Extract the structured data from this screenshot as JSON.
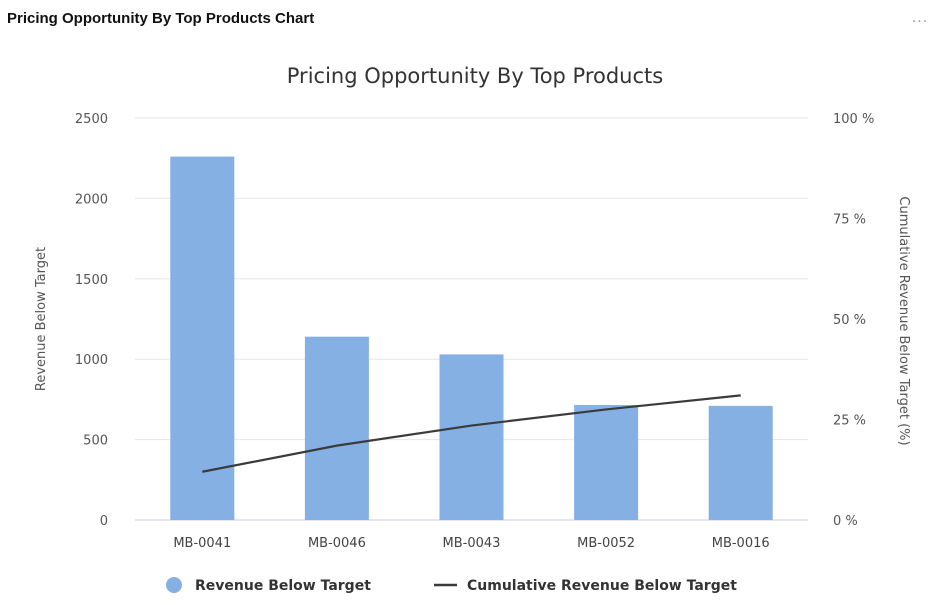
{
  "panel": {
    "title": "Pricing Opportunity By Top Products Chart",
    "more_icon": "ellipsis-icon",
    "more_label": "..."
  },
  "chart_data": {
    "type": "bar",
    "title": "Pricing Opportunity By Top Products",
    "categories": [
      "MB-0041",
      "MB-0046",
      "MB-0043",
      "MB-0052",
      "MB-0016"
    ],
    "series": [
      {
        "name": "Revenue Below Target",
        "type": "bar",
        "axis": "left",
        "values": [
          2260,
          1140,
          1030,
          715,
          710
        ],
        "color": "#85b0e4"
      },
      {
        "name": "Cumulative Revenue Below Target",
        "type": "line",
        "axis": "right",
        "values": [
          12,
          18.5,
          23.5,
          27.5,
          31
        ],
        "color": "#3b3b3b"
      }
    ],
    "ylabel": "Revenue Below Target",
    "ylim": [
      0,
      2500
    ],
    "yticks": [
      "0",
      "500",
      "1000",
      "1500",
      "2000",
      "2500"
    ],
    "y2label": "Cumulative Revenue Below Target (%)",
    "y2lim": [
      0,
      100
    ],
    "y2ticks": [
      "0 %",
      "25 %",
      "50 %",
      "75 %",
      "100 %"
    ],
    "grid": true,
    "legend": "bottom-center"
  }
}
